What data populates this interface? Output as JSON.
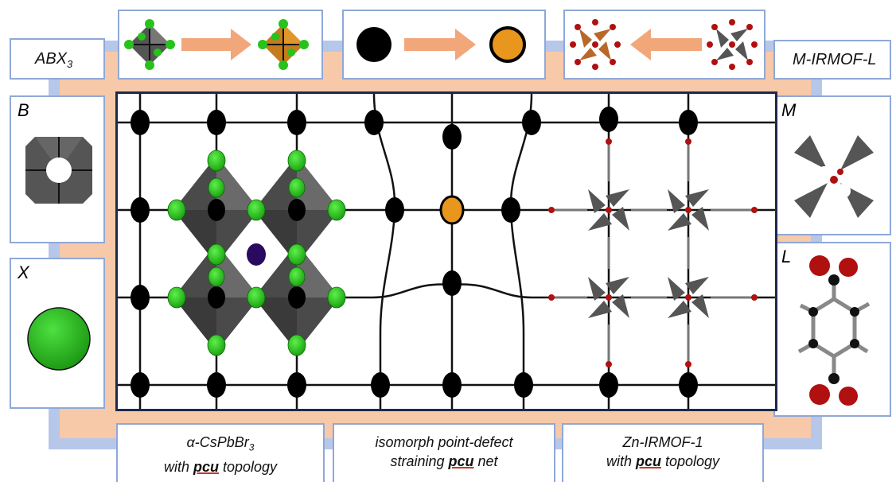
{
  "left_top_label": "ABX",
  "left_top_sub": "3",
  "right_top_label": "M-IRMOF-L",
  "panels": {
    "B": "B",
    "X": "X",
    "M": "M",
    "L": "L"
  },
  "captions": {
    "left": {
      "line1_pre": "α-CsPbBr",
      "line1_sub": "3",
      "line2_pre": "with ",
      "line2_bold": "pcu",
      "line2_post": " topology"
    },
    "middle": {
      "line1": "isomorph point-defect",
      "line2_pre": "straining ",
      "line2_bold": "pcu",
      "line2_post": " net"
    },
    "right": {
      "line1": "Zn-IRMOF-1",
      "line2_pre": "with ",
      "line2_bold": "pcu",
      "line2_post": " topology"
    }
  },
  "colors": {
    "frame_border": "#8fa8d8",
    "frame_fill": "#f7c9a8",
    "arrow": "#f2a77a",
    "halide_green": "#27c21c",
    "octa_gray": "#555555",
    "defect_orange": "#e8961e",
    "cation_purple": "#2a0a5e",
    "oxygen_red": "#b01010",
    "node_black": "#000000"
  },
  "icons": [
    "octahedron-icon",
    "arrow-right-icon",
    "arrow-left-icon",
    "black-sphere-icon",
    "orange-sphere-icon",
    "zn-cluster-icon",
    "linker-icon"
  ]
}
